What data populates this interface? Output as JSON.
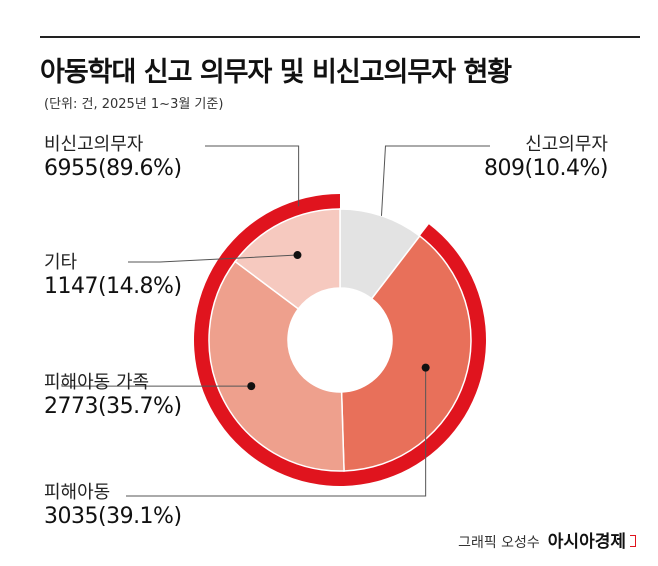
{
  "title": "아동학대 신고 의무자 및 비신고의무자 현황",
  "subtitle": "(단위: 건, 2025년 1~3월 기준)",
  "credit": {
    "byline": "그래픽 오성수",
    "brand": "아시아경제"
  },
  "colors": {
    "outer_ring": "#e0141e",
    "outer_ring_gap": "#ffffff",
    "reporter_slice": "#e3e3e3",
    "victim": "#e8705a",
    "family": "#eea08d",
    "other": "#f6c9bf",
    "leader": "#555555"
  },
  "chart_data": {
    "type": "pie",
    "title": "아동학대 신고 의무자 및 비신고의무자 현황",
    "unit": "건",
    "groups": [
      {
        "label": "신고의무자",
        "value": 809,
        "display": "809(10.4%)"
      },
      {
        "label": "비신고의무자",
        "value": 6955,
        "display": "6955(89.6%)"
      }
    ],
    "slices": [
      {
        "label": "신고의무자",
        "value": 809,
        "percent": 10.4,
        "display": "809(10.4%)"
      },
      {
        "label": "피해아동",
        "value": 3035,
        "percent": 39.1,
        "display": "3035(39.1%)"
      },
      {
        "label": "피해아동 가족",
        "value": 2773,
        "percent": 35.7,
        "display": "2773(35.7%)"
      },
      {
        "label": "기타",
        "value": 1147,
        "percent": 14.8,
        "display": "1147(14.8%)"
      }
    ]
  }
}
